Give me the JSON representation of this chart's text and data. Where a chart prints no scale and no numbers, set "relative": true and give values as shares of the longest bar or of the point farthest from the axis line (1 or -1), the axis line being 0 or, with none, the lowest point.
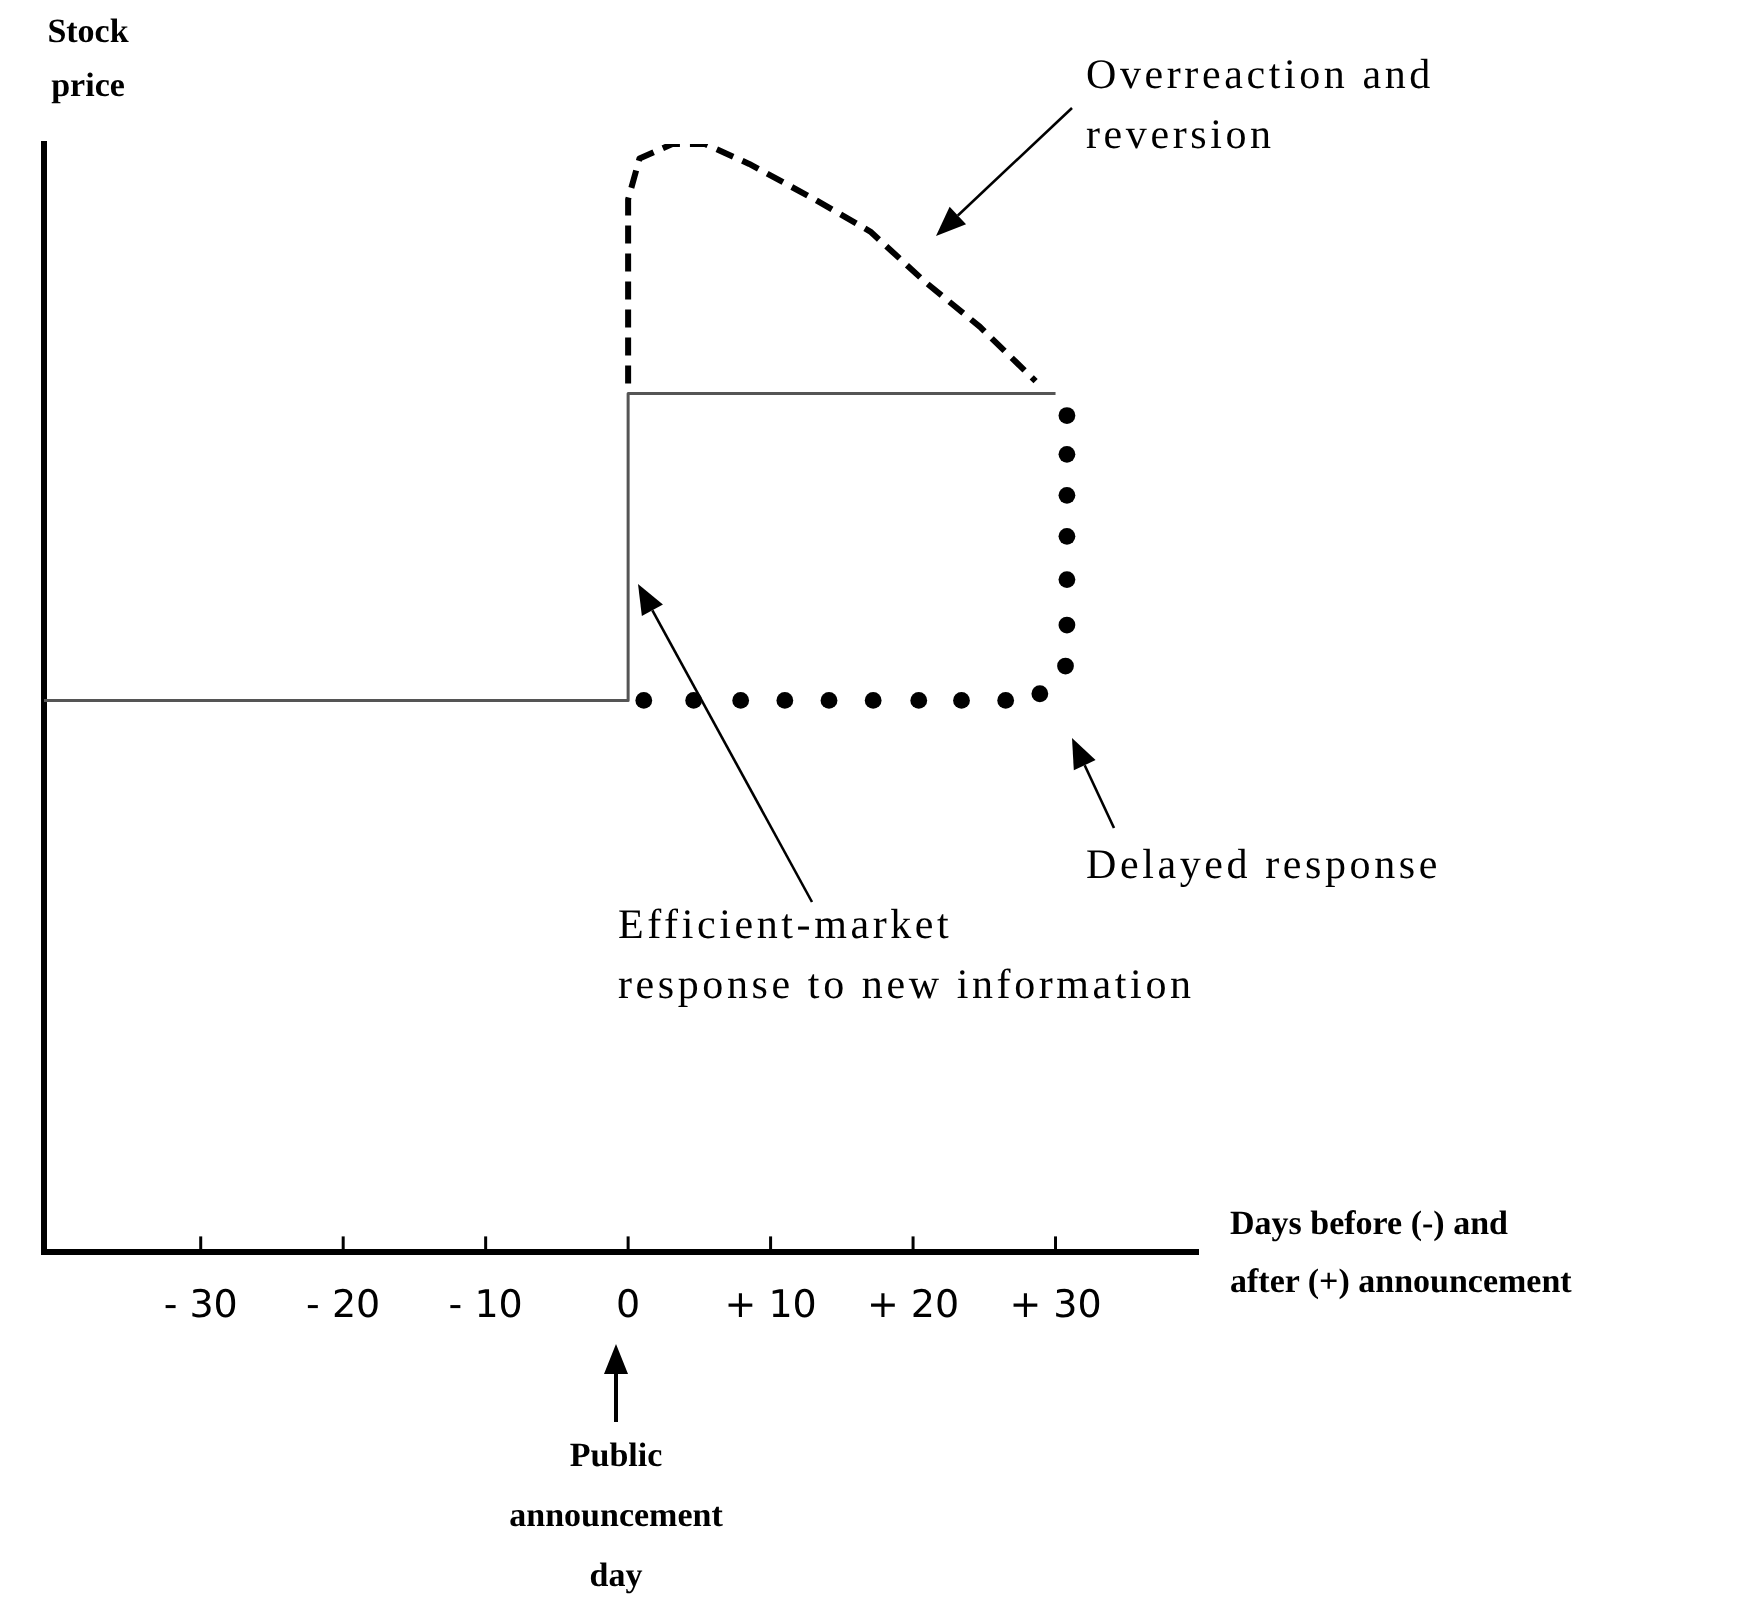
{
  "chart_data": {
    "type": "line",
    "relative": true,
    "xlabel": "Days before (-) and after (+) announcement",
    "ylabel": "Stock price",
    "xlim": [
      -41,
      40
    ],
    "xticks": [
      {
        "value": -30,
        "label": "- 30"
      },
      {
        "value": -20,
        "label": "- 20"
      },
      {
        "value": -10,
        "label": "- 10"
      },
      0,
      {
        "value": 10,
        "label": "+ 10"
      },
      {
        "value": 20,
        "label": "+ 20"
      },
      {
        "value": 30,
        "label": "+ 30"
      }
    ],
    "series": [
      {
        "color": "#555555",
        "line_style": "solid",
        "marker": "none",
        "x": [
          -41,
          0,
          0,
          30
        ],
        "values": [
          0.498,
          0.498,
          0.775,
          0.775
        ]
      },
      {
        "color": "#000000",
        "line_style": "dashed",
        "marker": "none",
        "x": [
          0,
          0,
          0.8,
          3.1,
          5.4,
          8.5,
          13.1,
          17.0,
          20.9,
          24.7,
          28.6
        ],
        "values": [
          0.784,
          0.95,
          0.987,
          1.0,
          1.0,
          0.982,
          0.95,
          0.921,
          0.875,
          0.835,
          0.786
        ]
      },
      {
        "type": "scatter",
        "color": "#000000",
        "marker": "circle",
        "x": [
          1.1,
          4.6,
          7.9,
          11.0,
          14.1,
          17.2,
          20.4,
          23.4,
          26.5,
          28.9,
          30.7,
          30.8,
          30.8,
          30.8,
          30.8,
          30.8,
          30.8
        ],
        "values": [
          0.498,
          0.498,
          0.498,
          0.498,
          0.498,
          0.498,
          0.498,
          0.498,
          0.498,
          0.504,
          0.529,
          0.566,
          0.607,
          0.646,
          0.683,
          0.72,
          0.755
        ]
      }
    ],
    "annotations": [
      "Overreaction and reversion",
      "Efficient-market response to new information",
      "Delayed response",
      "Public announcement day"
    ]
  }
}
